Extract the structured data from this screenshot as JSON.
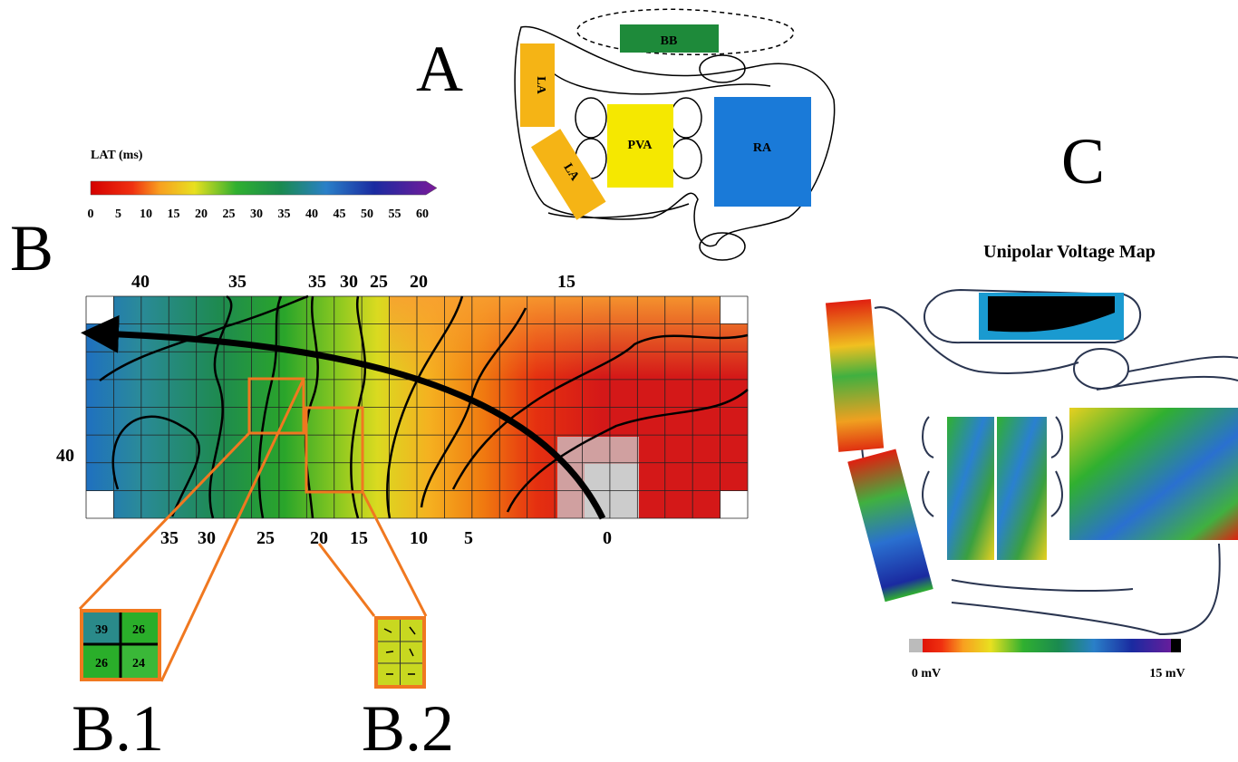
{
  "panel_labels": {
    "a": "A",
    "b": "B",
    "c": "C",
    "b1": "B.1",
    "b2": "B.2"
  },
  "anatomy": {
    "bb": "BB",
    "la_upper": "LA",
    "la_lower": "LA",
    "pva": "PVA",
    "ra": "RA"
  },
  "lat_colorbar": {
    "title": "LAT (ms)",
    "ticks": [
      0,
      5,
      10,
      15,
      20,
      25,
      30,
      35,
      40,
      45,
      50,
      55,
      60
    ]
  },
  "lat_map": {
    "top_contour_labels": [
      40,
      35,
      35,
      30,
      25,
      20,
      15
    ],
    "left_contour_labels": [
      40
    ],
    "bottom_contour_labels": [
      35,
      30,
      25,
      20,
      15,
      10,
      5,
      0
    ],
    "b1_values": [
      39,
      26,
      26,
      24
    ]
  },
  "voltage_map": {
    "title": "Unipolar Voltage Map",
    "min_label": "0 mV",
    "max_label": "15 mV"
  }
}
